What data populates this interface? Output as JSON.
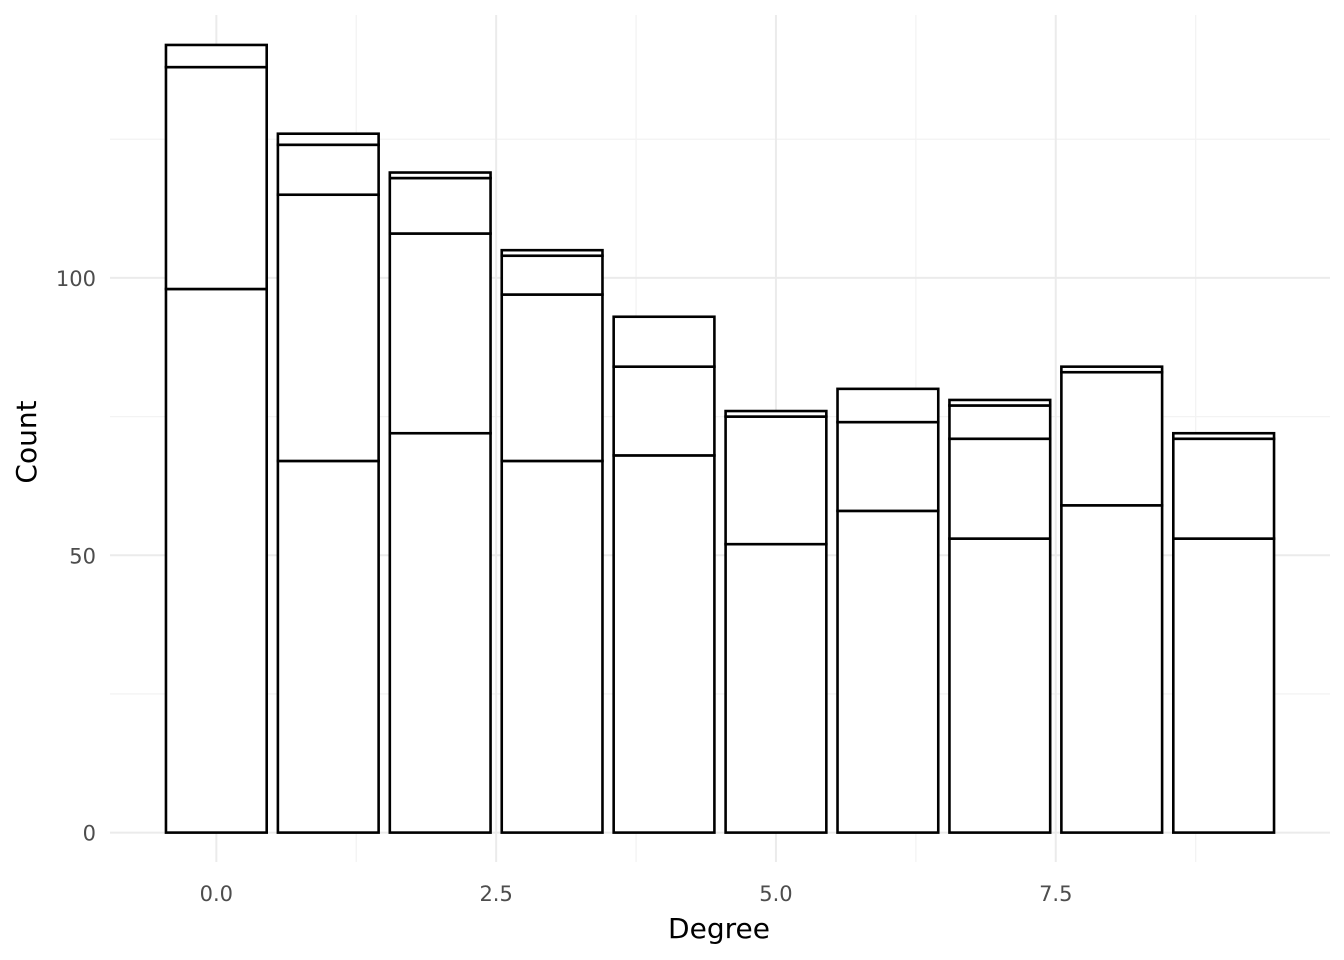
{
  "chart_data": {
    "type": "bar",
    "stacked": true,
    "xlabel": "Degree",
    "ylabel": "Count",
    "x": [
      0,
      1,
      2,
      3,
      4,
      5,
      6,
      7,
      8,
      9
    ],
    "stacks": [
      [
        98,
        40,
        4
      ],
      [
        67,
        48,
        9,
        2
      ],
      [
        72,
        36,
        10,
        1
      ],
      [
        67,
        30,
        7,
        1
      ],
      [
        68,
        16,
        9
      ],
      [
        52,
        23,
        1
      ],
      [
        58,
        16,
        6
      ],
      [
        53,
        18,
        6,
        1
      ],
      [
        59,
        24,
        1
      ],
      [
        53,
        18,
        1
      ]
    ],
    "xlim": [
      -0.95,
      9.95
    ],
    "ylim": [
      -5.3,
      147.4
    ],
    "x_ticks": [
      "0.0",
      "2.5",
      "5.0",
      "7.5"
    ],
    "x_tick_values": [
      0,
      2.5,
      5,
      7.5
    ],
    "y_ticks": [
      "0",
      "50",
      "100"
    ],
    "y_tick_values": [
      0,
      50,
      100
    ],
    "bar_width": 0.9,
    "grid": true,
    "legend": "none",
    "colors": {
      "bar_fill": "#ffffff",
      "bar_outline": "#000000",
      "grid": "#ebebeb",
      "tick_text": "#4d4d4d",
      "title_text": "#000000"
    }
  }
}
